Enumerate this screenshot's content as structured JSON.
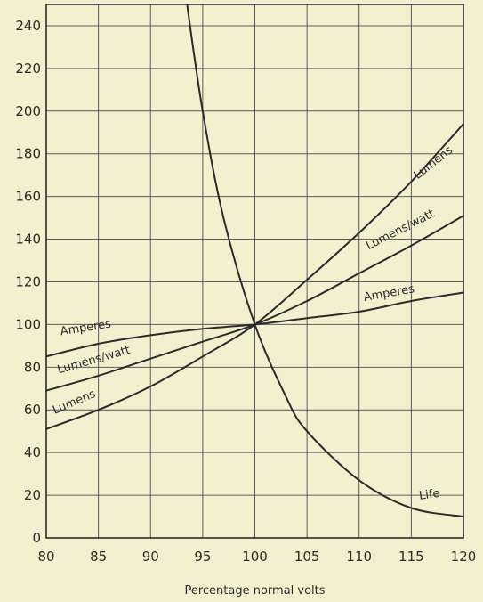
{
  "chart_data": {
    "type": "line",
    "title": "",
    "xlabel": "Percentage normal volts",
    "ylabel": "",
    "xlim": [
      80,
      120
    ],
    "ylim": [
      0,
      250
    ],
    "x_ticks": [
      80,
      85,
      90,
      95,
      100,
      105,
      110,
      115,
      120
    ],
    "y_ticks": [
      0,
      20,
      40,
      60,
      80,
      100,
      120,
      140,
      160,
      180,
      200,
      220,
      240
    ],
    "grid": true,
    "x": [
      80,
      85,
      90,
      95,
      100,
      105,
      110,
      115,
      120
    ],
    "series": [
      {
        "name": "Lumens",
        "values": [
          51,
          60,
          71,
          85,
          100,
          121,
          143,
          167,
          194
        ]
      },
      {
        "name": "Lumens/watt",
        "values": [
          69,
          76,
          84,
          92,
          100,
          111,
          124,
          137,
          151
        ]
      },
      {
        "name": "Amperes",
        "values": [
          85,
          91,
          95,
          98,
          100,
          103,
          106,
          111,
          115
        ]
      },
      {
        "name": "Life",
        "points": [
          [
            93.5,
            250
          ],
          [
            95,
            200
          ],
          [
            97,
            150
          ],
          [
            100,
            100
          ],
          [
            103,
            66
          ],
          [
            105,
            50
          ],
          [
            110,
            27
          ],
          [
            115,
            14
          ],
          [
            120,
            10
          ]
        ]
      }
    ],
    "curve_labels": [
      {
        "text": "Life",
        "series": "Life",
        "at": [
          93.5,
          252
        ],
        "rotate": 0,
        "anchor": "end"
      },
      {
        "text": "Life",
        "series": "Life",
        "at": [
          115.8,
          18
        ],
        "rotate": -8,
        "anchor": "start"
      },
      {
        "text": "Lumens",
        "series": "Lumens",
        "at": [
          115.6,
          168
        ],
        "rotate": -38,
        "anchor": "start"
      },
      {
        "text": "Lumens/watt",
        "series": "Lumens/watt",
        "at": [
          110.9,
          135
        ],
        "rotate": -27,
        "anchor": "start"
      },
      {
        "text": "Amperes",
        "series": "Amperes",
        "at": [
          110.5,
          111
        ],
        "rotate": -10,
        "anchor": "start"
      },
      {
        "text": "Amperes",
        "series": "Amperes",
        "at": [
          81.4,
          95
        ],
        "rotate": -9,
        "anchor": "start"
      },
      {
        "text": "Lumens/watt",
        "series": "Lumens/watt",
        "at": [
          81.2,
          77
        ],
        "rotate": -16,
        "anchor": "start"
      },
      {
        "text": "Lumens",
        "series": "Lumens",
        "at": [
          80.8,
          58
        ],
        "rotate": -23,
        "anchor": "start"
      }
    ],
    "colors": {
      "background": "#f4efcf",
      "grid": "#5c5c5c",
      "curve": "#2b2b2b",
      "text": "#2b2b2b"
    }
  }
}
